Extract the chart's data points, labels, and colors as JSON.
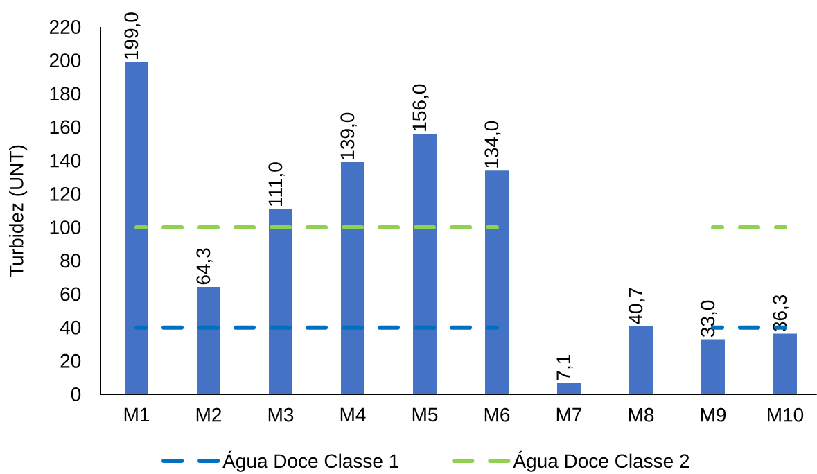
{
  "chart_data": {
    "type": "bar",
    "ylabel": "Turbidez (UNT)",
    "categories": [
      "M1",
      "M2",
      "M3",
      "M4",
      "M5",
      "M6",
      "M7",
      "M8",
      "M9",
      "M10"
    ],
    "series": [
      {
        "color": "#4472c4",
        "values": [
          199.0,
          64.3,
          111.0,
          139.0,
          156.0,
          134.0,
          7.1,
          40.7,
          33.0,
          36.3
        ],
        "value_labels": [
          "199,0",
          "64,3",
          "111,0",
          "139,0",
          "156,0",
          "134,0",
          "7,1",
          "40,7",
          "33,0",
          "36,3"
        ]
      },
      {
        "type": "line",
        "name": "Água Doce Classe 1",
        "color": "#0070c0",
        "line_style": "dashed",
        "values": [
          40,
          40,
          40,
          40,
          40,
          40,
          null,
          null,
          40,
          40
        ]
      },
      {
        "type": "line",
        "name": "Água Doce Classe 2",
        "color": "#92d050",
        "line_style": "dashed",
        "values": [
          100,
          100,
          100,
          100,
          100,
          100,
          null,
          null,
          100,
          100
        ]
      }
    ],
    "ylim": [
      0,
      220
    ],
    "yticks": [
      0,
      20,
      40,
      60,
      80,
      100,
      120,
      140,
      160,
      180,
      200,
      220
    ],
    "legend": "bottom"
  }
}
